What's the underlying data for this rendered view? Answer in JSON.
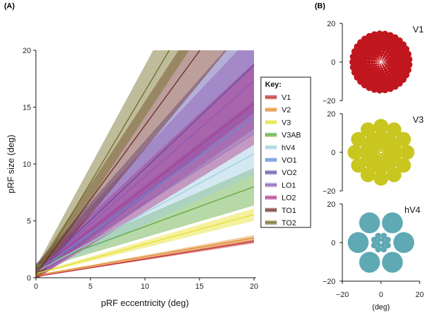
{
  "chart_data": [
    {
      "panel": "(A)",
      "type": "line",
      "xlabel": "pRF eccentricity (deg)",
      "ylabel": "pRF size (deg)",
      "xlim": [
        0,
        20
      ],
      "ylim": [
        0,
        20
      ],
      "xticks": [
        0,
        5,
        10,
        15,
        20
      ],
      "yticks": [
        0,
        5,
        10,
        15,
        20
      ],
      "legend_title": "Key:",
      "legend_position": "right",
      "note": "Each series is a linear fit (size = intercept + slope × eccentricity) with a shaded confidence band.",
      "series": [
        {
          "name": "V1",
          "color": "#c22b2b",
          "intercept": 0.1,
          "slope": 0.155,
          "band": 0.06
        },
        {
          "name": "V2",
          "color": "#e08a2a",
          "intercept": 0.2,
          "slope": 0.165,
          "band": 0.08
        },
        {
          "name": "V3",
          "color": "#e6e02a",
          "intercept": 0.35,
          "slope": 0.26,
          "band": 0.18
        },
        {
          "name": "V3AB",
          "color": "#5fa83c",
          "intercept": 1.0,
          "slope": 0.35,
          "band": 0.55
        },
        {
          "name": "hV4",
          "color": "#9fcde0",
          "intercept": 0.5,
          "slope": 0.52,
          "band": 0.6
        },
        {
          "name": "VO1",
          "color": "#5a8fd6",
          "intercept": 0.5,
          "slope": 0.68,
          "band": 0.5
        },
        {
          "name": "VO2",
          "color": "#5a4ea8",
          "intercept": 0.5,
          "slope": 0.91,
          "band": 1.4
        },
        {
          "name": "LO1",
          "color": "#8d5ab5",
          "intercept": 0.5,
          "slope": 0.84,
          "band": 1.4
        },
        {
          "name": "LO2",
          "color": "#b03a8a",
          "intercept": 0.5,
          "slope": 0.74,
          "band": 1.2
        },
        {
          "name": "TO1",
          "color": "#6b2b22",
          "intercept": 0.3,
          "slope": 1.31,
          "band": 1.2
        },
        {
          "name": "TO2",
          "color": "#6f6a22",
          "intercept": 0.3,
          "slope": 1.61,
          "band": 1.3
        }
      ]
    },
    {
      "panel": "(B)",
      "type": "scatter",
      "xlabel": "(deg)",
      "xlim": [
        -20,
        20
      ],
      "ylim": [
        -20,
        20
      ],
      "xticks": [
        -20,
        0,
        20
      ],
      "yticks": [
        -20,
        0,
        20
      ],
      "subplots": [
        {
          "label": "V1",
          "color": "#c0161e",
          "rings": [
            {
              "r": 0.8,
              "n": 6,
              "size": 0.25
            },
            {
              "r": 1.5,
              "n": 9,
              "size": 0.4
            },
            {
              "r": 2.4,
              "n": 12,
              "size": 0.55
            },
            {
              "r": 3.5,
              "n": 15,
              "size": 0.75
            },
            {
              "r": 4.8,
              "n": 18,
              "size": 0.95
            },
            {
              "r": 6.4,
              "n": 21,
              "size": 1.15
            },
            {
              "r": 8.2,
              "n": 24,
              "size": 1.35
            },
            {
              "r": 10.2,
              "n": 27,
              "size": 1.55
            },
            {
              "r": 12.4,
              "n": 30,
              "size": 1.7
            },
            {
              "r": 14.6,
              "n": 33,
              "size": 1.75
            }
          ]
        },
        {
          "label": "V3",
          "color": "#c9c620",
          "rings": [
            {
              "r": 1.2,
              "n": 6,
              "size": 0.7
            },
            {
              "r": 2.8,
              "n": 10,
              "size": 1.1
            },
            {
              "r": 4.8,
              "n": 12,
              "size": 1.6
            },
            {
              "r": 8.2,
              "n": 12,
              "size": 2.6
            },
            {
              "r": 13.5,
              "n": 12,
              "size": 3.8
            }
          ]
        },
        {
          "label": "hV4",
          "color": "#5ea9b4",
          "rings": [
            {
              "r": 1.6,
              "n": 6,
              "size": 1.1
            },
            {
              "r": 3.8,
              "n": 8,
              "size": 1.6
            },
            {
              "r": 11.8,
              "n": 6,
              "size": 5.4
            }
          ]
        }
      ]
    }
  ]
}
